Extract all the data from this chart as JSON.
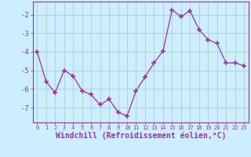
{
  "x": [
    0,
    1,
    2,
    3,
    4,
    5,
    6,
    7,
    8,
    9,
    10,
    11,
    12,
    13,
    14,
    15,
    16,
    17,
    18,
    19,
    20,
    21,
    22,
    23
  ],
  "y": [
    -4.0,
    -5.6,
    -6.2,
    -5.0,
    -5.3,
    -6.1,
    -6.3,
    -6.85,
    -6.55,
    -7.25,
    -7.45,
    -6.1,
    -5.35,
    -4.6,
    -3.95,
    -1.75,
    -2.1,
    -1.8,
    -2.8,
    -3.35,
    -3.55,
    -4.6,
    -4.6,
    -4.75
  ],
  "line_color": "#993399",
  "marker": "+",
  "marker_size": 4,
  "bg_color": "#cceeff",
  "grid_color": "#b0d4cc",
  "axis_color": "#993399",
  "tick_color": "#993399",
  "xlabel": "Windchill (Refroidissement éolien,°C)",
  "xlabel_fontsize": 7,
  "yticks": [
    -7,
    -6,
    -5,
    -4,
    -3,
    -2
  ],
  "ylim": [
    -7.8,
    -1.3
  ],
  "xlim": [
    -0.5,
    23.5
  ],
  "xtick_fontsize": 5,
  "ytick_fontsize": 6.5
}
